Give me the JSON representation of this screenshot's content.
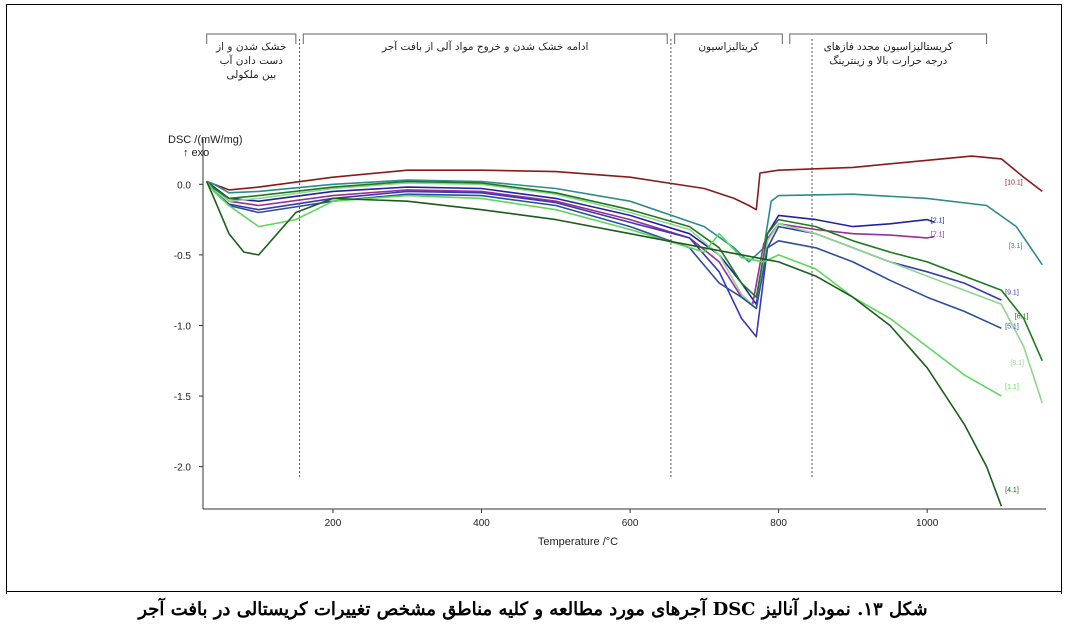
{
  "caption": "شکل ۱۳. نمودار آنالیز DSC آجرهای مورد مطالعه و کلیه مناطق مشخص تغییرات کریستالی در بافت آجر",
  "colors": {
    "border": "#000000",
    "grid": "#555555",
    "brace": "#666666"
  },
  "chart_data": {
    "type": "line",
    "xlabel": "Temperature /°C",
    "ylabel": "DSC /(mW/mg)",
    "ylabel_sub": "↑ exo",
    "xlim": [
      25,
      1160
    ],
    "ylim": [
      -2.3,
      0.25
    ],
    "xticks": [
      200,
      400,
      600,
      800,
      1000
    ],
    "xtick_labels": [
      "200",
      "400",
      "600",
      "800",
      "1000"
    ],
    "yticks": [
      0.0,
      -0.5,
      -1.0,
      -1.5,
      -2.0
    ],
    "ytick_labels": [
      "0.0",
      "-0.5",
      "-1.0",
      "-1.5",
      "-2.0"
    ],
    "region_boundaries": [
      155,
      655,
      845
    ],
    "regions": [
      {
        "x_from": 30,
        "x_to": 150,
        "lines": [
          "خشک شدن و از",
          "دست دادن آب",
          "بین ملکولی"
        ]
      },
      {
        "x_from": 160,
        "x_to": 650,
        "lines": [
          "ادامه خشک شدن و خروج مواد آلی از بافت آجر"
        ]
      },
      {
        "x_from": 660,
        "x_to": 805,
        "lines": [
          "کریتالیزاسیون"
        ]
      },
      {
        "x_from": 815,
        "x_to": 1080,
        "lines": [
          "کریستالیزاسیون مجدد فازهای",
          "درجه حرارت بالا و زینترینگ"
        ]
      }
    ],
    "series": [
      {
        "name": "[10.1]",
        "color": "#8B1A1A",
        "label_at": [
          1105,
          0.0
        ],
        "x": [
          30,
          40,
          60,
          100,
          200,
          300,
          400,
          500,
          600,
          700,
          740,
          760,
          770,
          775,
          800,
          900,
          1000,
          1060,
          1100,
          1130,
          1155
        ],
        "y": [
          0.02,
          0.0,
          -0.04,
          -0.02,
          0.05,
          0.1,
          0.1,
          0.09,
          0.05,
          -0.03,
          -0.1,
          -0.15,
          -0.18,
          0.08,
          0.1,
          0.12,
          0.17,
          0.2,
          0.18,
          0.05,
          -0.05
        ]
      },
      {
        "name": "[3.1]",
        "color": "#2E8B8B",
        "label_at": [
          1110,
          -0.45
        ],
        "x": [
          30,
          40,
          60,
          100,
          200,
          300,
          400,
          500,
          600,
          700,
          740,
          760,
          780,
          790,
          800,
          900,
          1000,
          1080,
          1120,
          1155
        ],
        "y": [
          0.02,
          0.0,
          -0.06,
          -0.05,
          0.0,
          0.03,
          0.02,
          -0.03,
          -0.12,
          -0.3,
          -0.45,
          -0.55,
          -0.45,
          -0.12,
          -0.08,
          -0.07,
          -0.1,
          -0.15,
          -0.3,
          -0.57
        ]
      },
      {
        "name": "[2.1]",
        "color": "#2323A0",
        "label_at": [
          1005,
          -0.27
        ],
        "x": [
          30,
          40,
          60,
          100,
          200,
          300,
          400,
          500,
          600,
          680,
          720,
          750,
          770,
          785,
          800,
          850,
          900,
          950,
          1000,
          1010
        ],
        "y": [
          0.02,
          -0.02,
          -0.1,
          -0.12,
          -0.05,
          -0.02,
          -0.03,
          -0.1,
          -0.22,
          -0.35,
          -0.5,
          -0.7,
          -0.85,
          -0.35,
          -0.22,
          -0.25,
          -0.3,
          -0.28,
          -0.25,
          -0.27
        ]
      },
      {
        "name": "[7.1]",
        "color": "#9B2D9B",
        "label_at": [
          1005,
          -0.37
        ],
        "x": [
          30,
          40,
          60,
          100,
          200,
          300,
          400,
          500,
          600,
          680,
          720,
          750,
          765,
          780,
          800,
          850,
          900,
          950,
          1000,
          1010
        ],
        "y": [
          0.02,
          -0.03,
          -0.12,
          -0.15,
          -0.08,
          -0.04,
          -0.05,
          -0.12,
          -0.25,
          -0.38,
          -0.55,
          -0.8,
          -0.85,
          -0.42,
          -0.28,
          -0.32,
          -0.35,
          -0.36,
          -0.38,
          -0.37
        ]
      },
      {
        "name": "[9.1]",
        "color": "#3A3AB0",
        "label_at": [
          1105,
          -0.78
        ],
        "x": [
          30,
          40,
          60,
          100,
          200,
          300,
          400,
          500,
          600,
          680,
          720,
          750,
          770,
          785,
          800,
          850,
          900,
          950,
          1000,
          1050,
          1100
        ],
        "y": [
          0.02,
          -0.05,
          -0.14,
          -0.18,
          -0.1,
          -0.05,
          -0.06,
          -0.13,
          -0.27,
          -0.38,
          -0.62,
          -0.95,
          -1.08,
          -0.45,
          -0.3,
          -0.35,
          -0.45,
          -0.55,
          -0.62,
          -0.7,
          -0.82
        ]
      },
      {
        "name": "[8.1]",
        "color": "#8FD68F",
        "label_at": [
          1112,
          -1.28
        ],
        "x": [
          30,
          40,
          60,
          100,
          200,
          300,
          400,
          500,
          600,
          680,
          720,
          750,
          770,
          785,
          800,
          850,
          900,
          950,
          1000,
          1050,
          1100,
          1130,
          1155
        ],
        "y": [
          0.02,
          -0.04,
          -0.12,
          -0.1,
          -0.03,
          0.01,
          0.0,
          -0.07,
          -0.2,
          -0.32,
          -0.5,
          -0.78,
          -0.88,
          -0.4,
          -0.28,
          -0.35,
          -0.45,
          -0.55,
          -0.65,
          -0.75,
          -0.85,
          -1.15,
          -1.55
        ]
      },
      {
        "name": "[6.1]",
        "color": "#1F7A1F",
        "label_at": [
          1118,
          -0.95
        ],
        "x": [
          30,
          40,
          60,
          100,
          200,
          300,
          400,
          500,
          600,
          680,
          720,
          750,
          770,
          785,
          800,
          850,
          900,
          950,
          1000,
          1050,
          1100,
          1130,
          1155
        ],
        "y": [
          0.02,
          -0.03,
          -0.1,
          -0.08,
          -0.02,
          0.02,
          0.01,
          -0.06,
          -0.18,
          -0.3,
          -0.45,
          -0.7,
          -0.8,
          -0.35,
          -0.25,
          -0.3,
          -0.4,
          -0.48,
          -0.55,
          -0.65,
          -0.75,
          -0.95,
          -1.25
        ]
      },
      {
        "name": "[5.1]",
        "color": "#2E4E9E",
        "label_at": [
          1105,
          -1.02
        ],
        "x": [
          30,
          40,
          60,
          100,
          200,
          300,
          400,
          500,
          600,
          680,
          720,
          750,
          770,
          785,
          800,
          850,
          900,
          950,
          1000,
          1050,
          1100
        ],
        "y": [
          0.02,
          -0.05,
          -0.15,
          -0.2,
          -0.12,
          -0.07,
          -0.08,
          -0.15,
          -0.3,
          -0.45,
          -0.7,
          -0.8,
          -0.88,
          -0.45,
          -0.4,
          -0.45,
          -0.55,
          -0.68,
          -0.8,
          -0.9,
          -1.02
        ]
      },
      {
        "name": "[1.1]",
        "color": "#5DD85D",
        "label_at": [
          1105,
          -1.45
        ],
        "x": [
          30,
          40,
          60,
          100,
          150,
          200,
          300,
          400,
          500,
          600,
          700,
          720,
          750,
          780,
          800,
          850,
          900,
          950,
          1000,
          1050,
          1100
        ],
        "y": [
          0.02,
          -0.05,
          -0.15,
          -0.3,
          -0.25,
          -0.12,
          -0.08,
          -0.1,
          -0.18,
          -0.32,
          -0.48,
          -0.35,
          -0.52,
          -0.55,
          -0.5,
          -0.6,
          -0.8,
          -0.95,
          -1.15,
          -1.35,
          -1.5
        ]
      },
      {
        "name": "[4.1]",
        "color": "#1B5E1B",
        "label_at": [
          1105,
          -2.18
        ],
        "x": [
          30,
          40,
          60,
          80,
          100,
          150,
          200,
          300,
          400,
          500,
          600,
          700,
          800,
          850,
          900,
          950,
          1000,
          1050,
          1080,
          1100
        ],
        "y": [
          0.02,
          -0.1,
          -0.35,
          -0.48,
          -0.5,
          -0.2,
          -0.1,
          -0.12,
          -0.18,
          -0.25,
          -0.35,
          -0.45,
          -0.55,
          -0.65,
          -0.8,
          -1.0,
          -1.3,
          -1.7,
          -2.0,
          -2.28
        ]
      }
    ]
  }
}
